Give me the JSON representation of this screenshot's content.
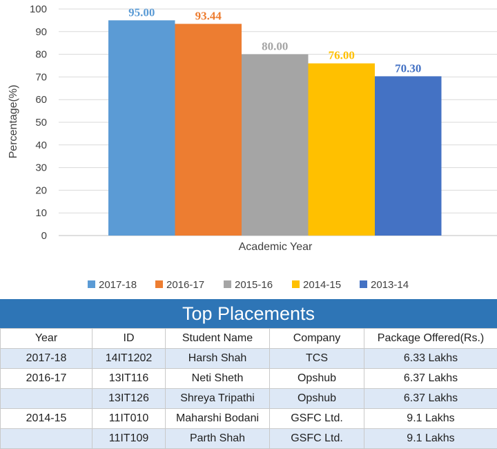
{
  "chart_data": {
    "type": "bar",
    "title": "",
    "xlabel": "Academic Year",
    "ylabel": "Percentage(%)",
    "ylim": [
      0,
      100
    ],
    "yticks": [
      0,
      10,
      20,
      30,
      40,
      50,
      60,
      70,
      80,
      90,
      100
    ],
    "grid": true,
    "legend_position": "bottom",
    "series": [
      {
        "name": "2017-18",
        "value": 95.0,
        "label": "95.00",
        "color": "#5b9bd5"
      },
      {
        "name": "2016-17",
        "value": 93.44,
        "label": "93.44",
        "color": "#ed7d31"
      },
      {
        "name": "2015-16",
        "value": 80.0,
        "label": "80.00",
        "color": "#a5a5a5"
      },
      {
        "name": "2014-15",
        "value": 76.0,
        "label": "76.00",
        "color": "#ffc000"
      },
      {
        "name": "2013-14",
        "value": 70.3,
        "label": "70.30",
        "color": "#4472c4"
      }
    ]
  },
  "placements": {
    "title": "Top Placements",
    "columns": [
      "Year",
      "ID",
      "Student Name",
      "Company",
      "Package Offered(Rs.)"
    ],
    "rows": [
      [
        "2017-18",
        "14IT1202",
        "Harsh Shah",
        "TCS",
        "6.33 Lakhs"
      ],
      [
        "2016-17",
        "13IT116",
        "Neti Sheth",
        "Opshub",
        "6.37 Lakhs"
      ],
      [
        "",
        "13IT126",
        "Shreya Tripathi",
        "Opshub",
        "6.37 Lakhs"
      ],
      [
        "2014-15",
        "11IT010",
        "Maharshi Bodani",
        "GSFC Ltd.",
        "9.1 Lakhs"
      ],
      [
        "",
        "11IT109",
        "Parth Shah",
        "GSFC Ltd.",
        "9.1 Lakhs"
      ]
    ]
  }
}
